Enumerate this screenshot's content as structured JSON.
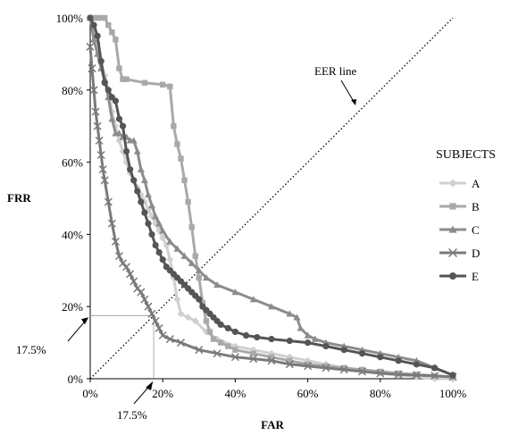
{
  "chart_data": {
    "type": "line",
    "xlabel": "FAR",
    "ylabel": "FRR",
    "xlim": [
      0,
      100
    ],
    "ylim": [
      0,
      100
    ],
    "x_ticks": [
      "0%",
      "20%",
      "40%",
      "60%",
      "80%",
      "100%"
    ],
    "y_ticks": [
      "0%",
      "20%",
      "40%",
      "60%",
      "80%",
      "100%"
    ],
    "grid": false,
    "legend": {
      "title": "SUBJECTS",
      "placement": "right"
    },
    "eer_line": {
      "label": "EER line",
      "from": [
        0,
        0
      ],
      "to": [
        100,
        100
      ]
    },
    "eer_marker": {
      "x": 17.5,
      "y": 17.5,
      "x_label": "17.5%",
      "y_label": "17.5%"
    },
    "series": [
      {
        "name": "A",
        "color": "#d0d0d0",
        "marker": "diamond",
        "points": [
          [
            0,
            100
          ],
          [
            1,
            97
          ],
          [
            2,
            93
          ],
          [
            3,
            88
          ],
          [
            4,
            84
          ],
          [
            5,
            80
          ],
          [
            6,
            74
          ],
          [
            7,
            70
          ],
          [
            8,
            66
          ],
          [
            9,
            63
          ],
          [
            10,
            60
          ],
          [
            11,
            57
          ],
          [
            12,
            55
          ],
          [
            13,
            53
          ],
          [
            14,
            51
          ],
          [
            15,
            49
          ],
          [
            16,
            47
          ],
          [
            17,
            45
          ],
          [
            18,
            43
          ],
          [
            19,
            41
          ],
          [
            20,
            39
          ],
          [
            21,
            37
          ],
          [
            22,
            33
          ],
          [
            23,
            28
          ],
          [
            24,
            22
          ],
          [
            25,
            18
          ],
          [
            27,
            17
          ],
          [
            29,
            16
          ],
          [
            32,
            13
          ],
          [
            35,
            11
          ],
          [
            40,
            9
          ],
          [
            45,
            8
          ],
          [
            50,
            7
          ],
          [
            55,
            6
          ],
          [
            60,
            5
          ],
          [
            65,
            4
          ],
          [
            70,
            3
          ],
          [
            75,
            2
          ],
          [
            80,
            1.5
          ],
          [
            85,
            1
          ],
          [
            90,
            0.5
          ],
          [
            95,
            0
          ],
          [
            100,
            0
          ]
        ]
      },
      {
        "name": "B",
        "color": "#a9a9a9",
        "marker": "square",
        "points": [
          [
            0,
            100
          ],
          [
            1,
            100
          ],
          [
            2,
            100
          ],
          [
            3,
            100
          ],
          [
            4,
            100
          ],
          [
            5,
            98
          ],
          [
            6,
            96
          ],
          [
            7,
            94
          ],
          [
            8,
            86
          ],
          [
            9,
            83
          ],
          [
            10,
            83
          ],
          [
            15,
            82
          ],
          [
            20,
            81.5
          ],
          [
            22,
            81
          ],
          [
            23,
            70
          ],
          [
            24,
            65
          ],
          [
            25,
            61
          ],
          [
            26,
            55
          ],
          [
            27,
            49
          ],
          [
            28,
            42
          ],
          [
            29,
            34
          ],
          [
            30,
            28
          ],
          [
            31,
            21
          ],
          [
            32,
            16
          ],
          [
            33,
            13
          ],
          [
            34,
            11
          ],
          [
            36,
            10
          ],
          [
            38,
            9
          ],
          [
            40,
            8
          ],
          [
            45,
            7
          ],
          [
            50,
            6
          ],
          [
            55,
            5
          ],
          [
            60,
            4
          ],
          [
            65,
            3.5
          ],
          [
            70,
            3
          ],
          [
            75,
            2.5
          ],
          [
            80,
            2
          ],
          [
            85,
            1.5
          ],
          [
            90,
            1.2
          ],
          [
            95,
            0.8
          ],
          [
            100,
            0.5
          ]
        ]
      },
      {
        "name": "C",
        "color": "#8c8c8c",
        "marker": "triangle",
        "points": [
          [
            0,
            100
          ],
          [
            1,
            94
          ],
          [
            2,
            90
          ],
          [
            3,
            86
          ],
          [
            4,
            83
          ],
          [
            5,
            78
          ],
          [
            6,
            72
          ],
          [
            7,
            68
          ],
          [
            8,
            68
          ],
          [
            9,
            67
          ],
          [
            10,
            67
          ],
          [
            11,
            66
          ],
          [
            12,
            66
          ],
          [
            13,
            63
          ],
          [
            14,
            58
          ],
          [
            15,
            55
          ],
          [
            16,
            51
          ],
          [
            17,
            48
          ],
          [
            18,
            45
          ],
          [
            19,
            43
          ],
          [
            20,
            41
          ],
          [
            22,
            38
          ],
          [
            24,
            36
          ],
          [
            26,
            34
          ],
          [
            28,
            32
          ],
          [
            30,
            30
          ],
          [
            32,
            28
          ],
          [
            35,
            26
          ],
          [
            40,
            24
          ],
          [
            45,
            22
          ],
          [
            50,
            20
          ],
          [
            55,
            18
          ],
          [
            57,
            17
          ],
          [
            58,
            14
          ],
          [
            60,
            12
          ],
          [
            62,
            11
          ],
          [
            65,
            10
          ],
          [
            70,
            9
          ],
          [
            75,
            8
          ],
          [
            80,
            7
          ],
          [
            85,
            6
          ],
          [
            90,
            5
          ],
          [
            95,
            3
          ],
          [
            100,
            1
          ]
        ]
      },
      {
        "name": "D",
        "color": "#7a7a7a",
        "marker": "cross",
        "points": [
          [
            0,
            92
          ],
          [
            0.5,
            86
          ],
          [
            1,
            80
          ],
          [
            1.5,
            74
          ],
          [
            2,
            70
          ],
          [
            2.5,
            66
          ],
          [
            3,
            62
          ],
          [
            3.5,
            58
          ],
          [
            4,
            55
          ],
          [
            5,
            49
          ],
          [
            6,
            43
          ],
          [
            7,
            38
          ],
          [
            8,
            34
          ],
          [
            9,
            32
          ],
          [
            10,
            31
          ],
          [
            11,
            29
          ],
          [
            12,
            27
          ],
          [
            13,
            25
          ],
          [
            14,
            24
          ],
          [
            15,
            22
          ],
          [
            16,
            20
          ],
          [
            17,
            18
          ],
          [
            18,
            16
          ],
          [
            19,
            14
          ],
          [
            20,
            12
          ],
          [
            22,
            11
          ],
          [
            25,
            10
          ],
          [
            30,
            8
          ],
          [
            35,
            7
          ],
          [
            40,
            6
          ],
          [
            45,
            5.5
          ],
          [
            50,
            5
          ],
          [
            55,
            4
          ],
          [
            60,
            3.5
          ],
          [
            65,
            3
          ],
          [
            70,
            2.5
          ],
          [
            75,
            2
          ],
          [
            80,
            1.5
          ],
          [
            85,
            1.2
          ],
          [
            90,
            1
          ],
          [
            95,
            0.8
          ],
          [
            100,
            0.5
          ]
        ]
      },
      {
        "name": "E",
        "color": "#555555",
        "marker": "circle",
        "points": [
          [
            0,
            100
          ],
          [
            1,
            98
          ],
          [
            2,
            95
          ],
          [
            3,
            88
          ],
          [
            4,
            82
          ],
          [
            5,
            80
          ],
          [
            6,
            78
          ],
          [
            7,
            77
          ],
          [
            8,
            72
          ],
          [
            9,
            70
          ],
          [
            10,
            63
          ],
          [
            11,
            58
          ],
          [
            12,
            55
          ],
          [
            13,
            52
          ],
          [
            14,
            49
          ],
          [
            15,
            46
          ],
          [
            16,
            43
          ],
          [
            17,
            40
          ],
          [
            18,
            37
          ],
          [
            19,
            35
          ],
          [
            20,
            33
          ],
          [
            21,
            31
          ],
          [
            22,
            30
          ],
          [
            23,
            29
          ],
          [
            24,
            28
          ],
          [
            25,
            27
          ],
          [
            26,
            26
          ],
          [
            27,
            25
          ],
          [
            28,
            24
          ],
          [
            29,
            23
          ],
          [
            30,
            22
          ],
          [
            31,
            20
          ],
          [
            32,
            19
          ],
          [
            33,
            18
          ],
          [
            34,
            17
          ],
          [
            35,
            16
          ],
          [
            36,
            15
          ],
          [
            38,
            14
          ],
          [
            40,
            13
          ],
          [
            43,
            12
          ],
          [
            46,
            11.5
          ],
          [
            50,
            11
          ],
          [
            55,
            10.5
          ],
          [
            60,
            10
          ],
          [
            65,
            9
          ],
          [
            70,
            8
          ],
          [
            75,
            7
          ],
          [
            80,
            6
          ],
          [
            85,
            5
          ],
          [
            90,
            4
          ],
          [
            95,
            3
          ],
          [
            100,
            1
          ]
        ]
      }
    ]
  }
}
